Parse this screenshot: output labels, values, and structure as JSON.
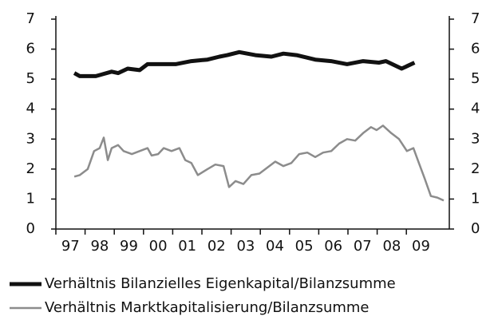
{
  "chart_data": {
    "type": "line",
    "xlim": [
      1997,
      2010.47
    ],
    "xticks": [
      {
        "value": 1997.5,
        "label": "97"
      },
      {
        "value": 1998.5,
        "label": "98"
      },
      {
        "value": 1999.5,
        "label": "99"
      },
      {
        "value": 2000.5,
        "label": "00"
      },
      {
        "value": 2001.5,
        "label": "01"
      },
      {
        "value": 2002.5,
        "label": "02"
      },
      {
        "value": 2003.5,
        "label": "03"
      },
      {
        "value": 2004.5,
        "label": "04"
      },
      {
        "value": 2005.5,
        "label": "05"
      },
      {
        "value": 2006.5,
        "label": "06"
      },
      {
        "value": 2007.5,
        "label": "07"
      },
      {
        "value": 2008.5,
        "label": "08"
      },
      {
        "value": 2009.5,
        "label": "09"
      }
    ],
    "ylim": [
      0,
      7
    ],
    "yticks": [
      0,
      1,
      2,
      3,
      4,
      5,
      6,
      7
    ],
    "y2lim": [
      0,
      7
    ],
    "y2ticks": [
      0,
      1,
      2,
      3,
      4,
      5,
      6,
      7
    ],
    "series": [
      {
        "name": "Verhältnis Bilanzielles Eigenkapital/Bilanzsumme",
        "color": "#111111",
        "width": 5,
        "x": [
          1997.63,
          1997.82,
          1998.37,
          1998.91,
          1999.13,
          1999.46,
          1999.87,
          2000.14,
          2001.1,
          2001.64,
          2002.19,
          2002.6,
          2002.87,
          2003.28,
          2003.83,
          2004.38,
          2004.79,
          2005.24,
          2005.88,
          2006.42,
          2006.97,
          2007.52,
          2008.06,
          2008.3,
          2008.84,
          2009.28
        ],
        "values": [
          5.2,
          5.1,
          5.1,
          5.25,
          5.2,
          5.35,
          5.3,
          5.5,
          5.5,
          5.6,
          5.65,
          5.75,
          5.8,
          5.9,
          5.8,
          5.75,
          5.85,
          5.8,
          5.65,
          5.6,
          5.5,
          5.6,
          5.55,
          5.6,
          5.35,
          5.55
        ]
      },
      {
        "name": "Verhältnis Marktkapitalisierung/Bilanzsumme",
        "color": "#8c8c8c",
        "width": 2.5,
        "x": [
          1997.63,
          1997.82,
          1998.09,
          1998.31,
          1998.5,
          1998.64,
          1998.78,
          1998.91,
          1999.13,
          1999.32,
          1999.6,
          1999.87,
          2000.14,
          2000.28,
          2000.5,
          2000.69,
          2000.96,
          2001.23,
          2001.43,
          2001.64,
          2001.86,
          2002.19,
          2002.46,
          2002.74,
          2002.93,
          2003.15,
          2003.42,
          2003.69,
          2003.97,
          2004.24,
          2004.51,
          2004.79,
          2005.06,
          2005.33,
          2005.61,
          2005.88,
          2006.15,
          2006.43,
          2006.7,
          2006.97,
          2007.25,
          2007.52,
          2007.79,
          2007.98,
          2008.2,
          2008.48,
          2008.75,
          2009.02,
          2009.24,
          2009.43,
          2009.62,
          2009.84,
          2010.06,
          2010.28
        ],
        "values": [
          1.75,
          1.8,
          2.0,
          2.6,
          2.7,
          3.05,
          2.3,
          2.7,
          2.8,
          2.6,
          2.5,
          2.6,
          2.7,
          2.45,
          2.5,
          2.7,
          2.6,
          2.7,
          2.3,
          2.2,
          1.8,
          2.0,
          2.15,
          2.1,
          1.4,
          1.6,
          1.5,
          1.8,
          1.85,
          2.05,
          2.25,
          2.1,
          2.2,
          2.5,
          2.55,
          2.4,
          2.55,
          2.6,
          2.85,
          3.0,
          2.95,
          3.2,
          3.4,
          3.3,
          3.45,
          3.2,
          3.0,
          2.6,
          2.7,
          2.2,
          1.7,
          1.1,
          1.05,
          0.95
        ]
      }
    ]
  }
}
